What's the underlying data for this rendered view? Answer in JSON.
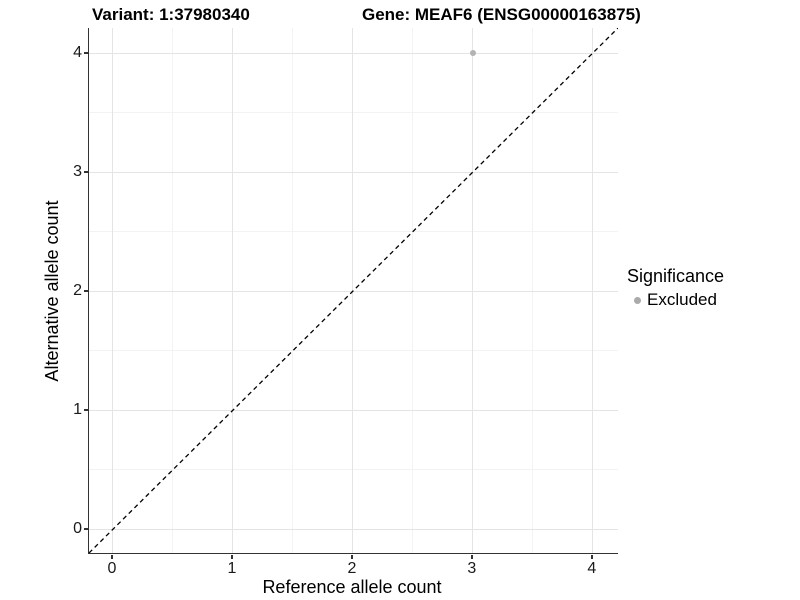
{
  "figure": {
    "title_left": "Variant: 1:37980340",
    "title_right": "Gene: MEAF6 (ENSG00000163875)"
  },
  "legend": {
    "title": "Significance",
    "items": [
      {
        "label": "Excluded",
        "color": "#aaaaaa"
      }
    ]
  },
  "styles": {
    "grid_major": "#e4e4e4",
    "grid_minor": "#f3f3f3",
    "axis_color": "#333333",
    "reference_line_color": "#000000",
    "point_color": "#b3b3b3"
  },
  "chart_data": {
    "type": "scatter",
    "title": "Variant: 1:37980340   Gene: MEAF6 (ENSG00000163875)",
    "xlabel": "Reference allele count",
    "ylabel": "Alternative allele count",
    "xlim": [
      -0.2,
      4.21
    ],
    "ylim": [
      -0.2,
      4.21
    ],
    "x_ticks": [
      0,
      1,
      2,
      3,
      4
    ],
    "y_ticks": [
      0,
      1,
      2,
      3,
      4
    ],
    "grid": true,
    "minor_grid": true,
    "legend_position": "right",
    "series": [
      {
        "name": "Excluded",
        "color": "#b3b3b3",
        "points": [
          {
            "x": 3,
            "y": 4
          }
        ]
      }
    ],
    "reference_line": {
      "type": "identity y=x",
      "style": "dashed",
      "color": "#000000"
    }
  }
}
